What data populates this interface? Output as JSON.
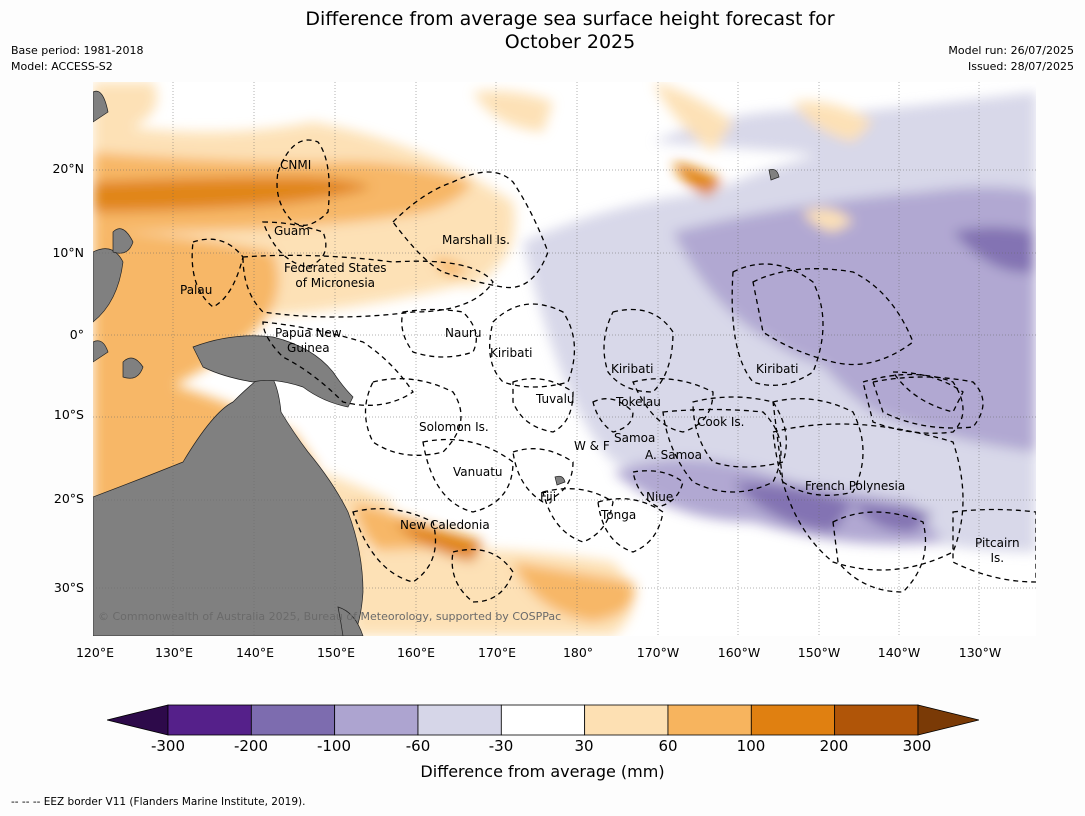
{
  "title_line1": "Difference from average sea surface height forecast for",
  "title_line2": "October 2025",
  "info_left": {
    "base_period": "Base period: 1981-2018",
    "model": "Model: ACCESS-S2"
  },
  "info_right": {
    "model_run": "Model run: 26/07/2025",
    "issued": "Issued: 28/07/2025"
  },
  "lon_ticks": [
    "120°E",
    "130°E",
    "140°E",
    "150°E",
    "160°E",
    "170°E",
    "180°",
    "170°W",
    "160°W",
    "150°W",
    "140°W",
    "130°W"
  ],
  "lat_ticks": [
    "20°N",
    "10°N",
    "0°",
    "10°S",
    "20°S",
    "30°S"
  ],
  "places": {
    "cnmi": "CNMI",
    "guam": "Guam",
    "marshall": "Marshall Is.",
    "fsm_1": "Federated States",
    "fsm_2": "of Micronesia",
    "palau": "Palau",
    "png_1": "Papua New",
    "png_2": "Guinea",
    "nauru": "Nauru",
    "kiribati_west": "Kiribati",
    "kiribati_central": "Kiribati",
    "kiribati_east": "Kiribati",
    "tuvalu": "Tuvalu",
    "tokelau": "Tokelau",
    "cook": "Cook Is.",
    "solomon": "Solomon Is.",
    "samoa": "Samoa",
    "wf": "W & F",
    "asamoa": "A. Samoa",
    "vanuatu": "Vanuatu",
    "fiji": "Fiji",
    "niue": "Niue",
    "tonga": "Tonga",
    "french_polynesia": "French Polynesia",
    "pitcairn_1": "Pitcairn",
    "pitcairn_2": "Is.",
    "new_caledonia": "New Caledonia"
  },
  "copyright": "© Commonwealth of Australia 2025, Bureau of Meteorology, supported by COSPPac",
  "colorbar": {
    "ticks": [
      "-300",
      "-200",
      "-100",
      "-60",
      "-30",
      "30",
      "60",
      "100",
      "200",
      "300"
    ],
    "colors": [
      "#2d0a4a",
      "#55208a",
      "#7d6caf",
      "#ada4d0",
      "#d6d6e8",
      "#ffffff",
      "#fde0b3",
      "#f7b45e",
      "#e08011",
      "#b05508",
      "#7a3a06"
    ],
    "label": "Difference from average (mm)"
  },
  "land_color": "#808080",
  "eez_note": "--  --  -- EEZ border V11 (Flanders Marine Institute, 2019)."
}
